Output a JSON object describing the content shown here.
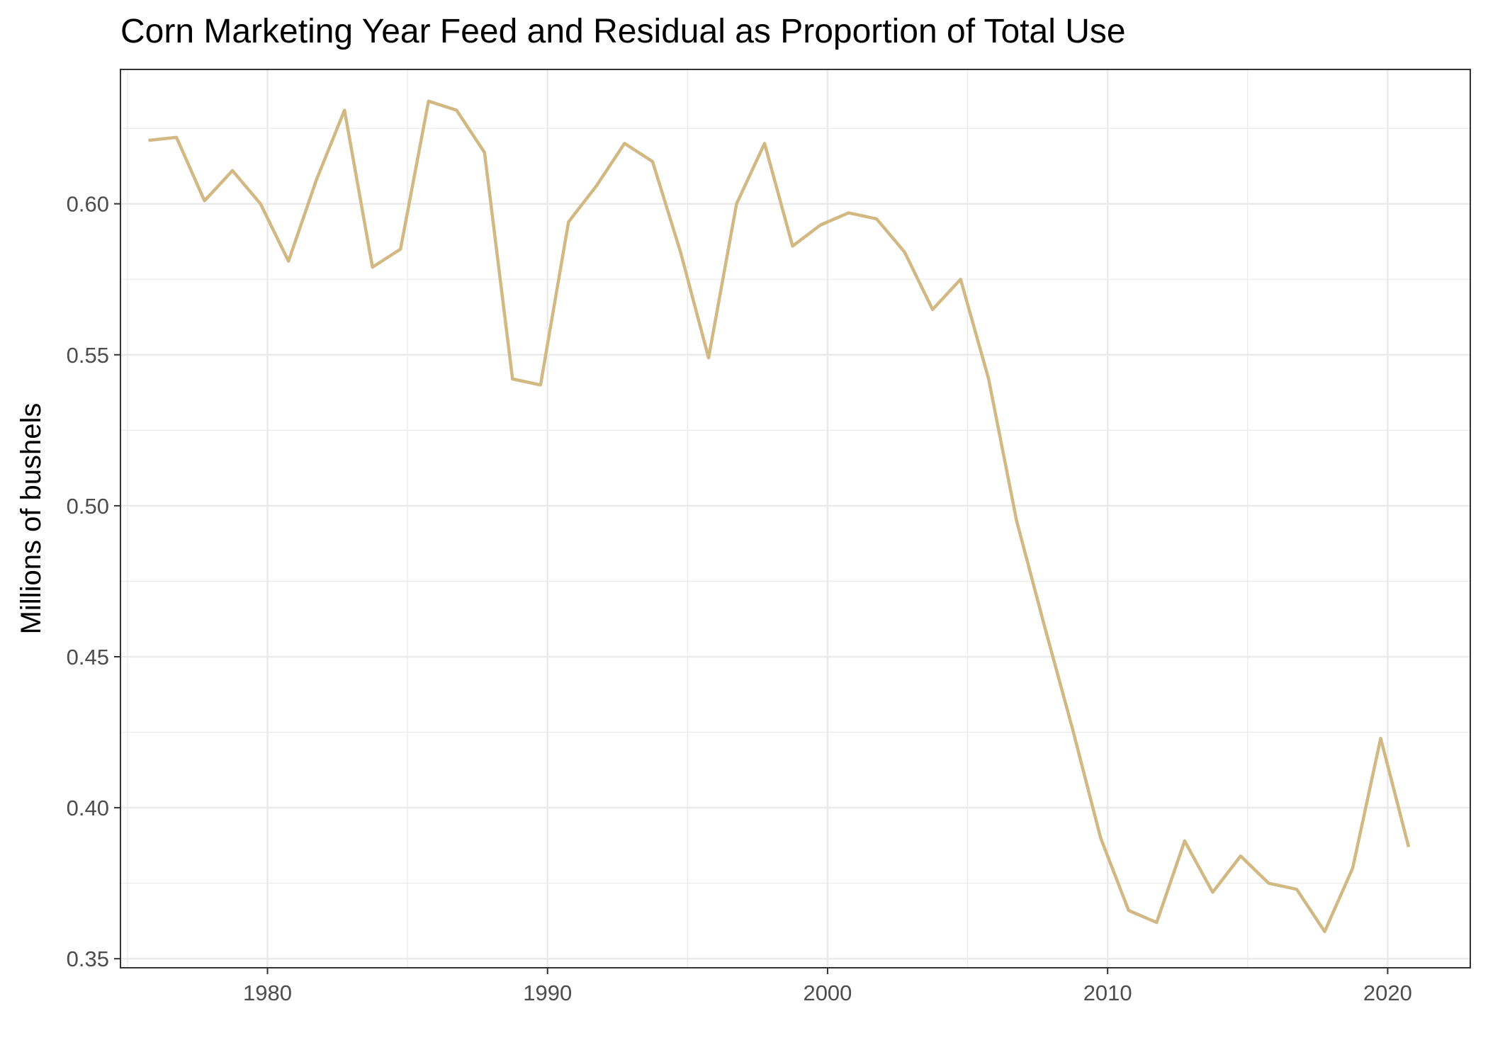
{
  "chart_data": {
    "type": "line",
    "title": "Corn Marketing Year Feed and Residual as Proportion of Total Use",
    "xlabel": "",
    "ylabel": "Millions of bushels",
    "xlim": [
      1974.75,
      2022.95
    ],
    "ylim": [
      0.347,
      0.6445
    ],
    "x_ticks": [
      1980,
      1990,
      2000,
      2010,
      2020
    ],
    "x_tick_labels": [
      "1980",
      "1990",
      "2000",
      "2010",
      "2020"
    ],
    "y_ticks": [
      0.35,
      0.4,
      0.45,
      0.5,
      0.55,
      0.6
    ],
    "y_tick_labels": [
      "0.35",
      "0.40",
      "0.45",
      "0.50",
      "0.55",
      "0.60"
    ],
    "grid": true,
    "legend": "none",
    "series": [
      {
        "color": "#D2B883",
        "x": [
          1975.75,
          1976.75,
          1977.75,
          1978.75,
          1979.75,
          1980.75,
          1981.75,
          1982.75,
          1983.75,
          1984.75,
          1985.75,
          1986.75,
          1987.75,
          1988.75,
          1989.75,
          1990.75,
          1991.75,
          1992.75,
          1993.75,
          1994.75,
          1995.75,
          1996.75,
          1997.75,
          1998.75,
          1999.75,
          2000.75,
          2001.75,
          2002.75,
          2003.75,
          2004.75,
          2005.75,
          2006.75,
          2007.75,
          2008.75,
          2009.75,
          2010.75,
          2011.75,
          2012.75,
          2013.75,
          2014.75,
          2015.75,
          2016.75,
          2017.75,
          2018.75,
          2019.75,
          2020.75
        ],
        "y": [
          0.621,
          0.622,
          0.601,
          0.611,
          0.6,
          0.581,
          0.608,
          0.631,
          0.579,
          0.585,
          0.634,
          0.631,
          0.617,
          0.542,
          0.54,
          0.594,
          0.606,
          0.62,
          0.614,
          0.584,
          0.549,
          0.6,
          0.62,
          0.586,
          0.593,
          0.597,
          0.595,
          0.584,
          0.565,
          0.575,
          0.542,
          0.495,
          0.46,
          0.426,
          0.39,
          0.366,
          0.362,
          0.389,
          0.372,
          0.384,
          0.375,
          0.373,
          0.359,
          0.38,
          0.423,
          0.387
        ]
      }
    ]
  }
}
